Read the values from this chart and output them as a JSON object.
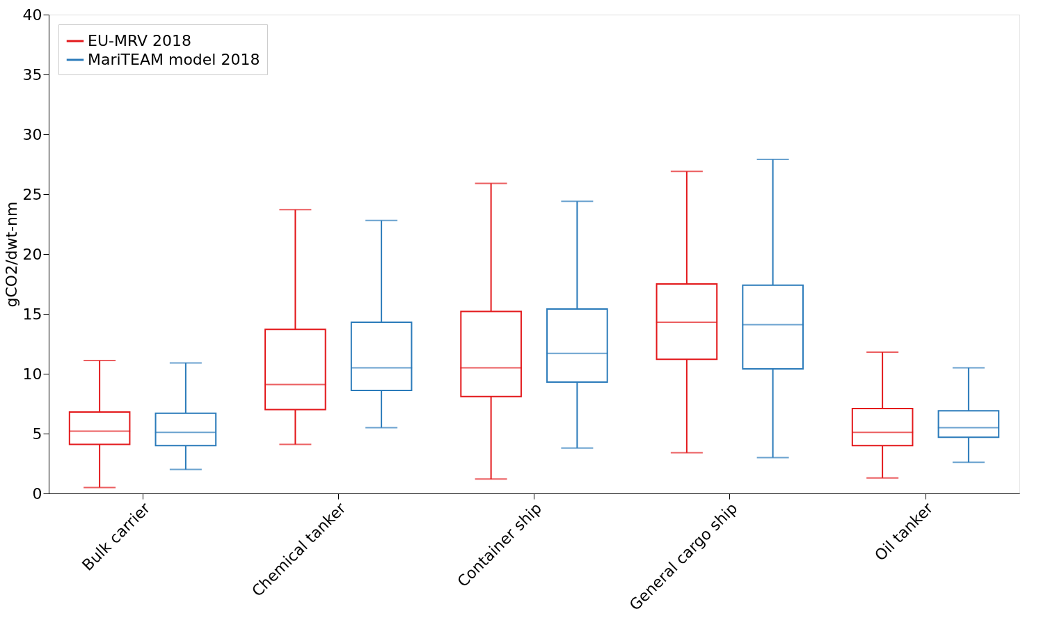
{
  "chart_data": {
    "type": "box",
    "ylabel": "gCO2/dwt-nm",
    "categories": [
      "Bulk carrier",
      "Chemical tanker",
      "Container ship",
      "General cargo ship",
      "Oil tanker"
    ],
    "ylim": [
      0,
      40
    ],
    "yticks": [
      0,
      5,
      10,
      15,
      20,
      25,
      30,
      35,
      40
    ],
    "grid": false,
    "legend": "top left",
    "series": [
      {
        "name": "EU-MRV 2018",
        "color": "#e3191c",
        "boxes": [
          {
            "low": 0.5,
            "q1": 4.1,
            "median": 5.2,
            "q3": 6.8,
            "high": 11.1
          },
          {
            "low": 4.1,
            "q1": 7.0,
            "median": 9.1,
            "q3": 13.7,
            "high": 23.7
          },
          {
            "low": 1.2,
            "q1": 8.1,
            "median": 10.5,
            "q3": 15.2,
            "high": 25.9
          },
          {
            "low": 3.4,
            "q1": 11.2,
            "median": 14.3,
            "q3": 17.5,
            "high": 26.9
          },
          {
            "low": 1.3,
            "q1": 4.0,
            "median": 5.1,
            "q3": 7.1,
            "high": 11.8
          }
        ]
      },
      {
        "name": "MariTEAM model 2018",
        "color": "#2b7bba",
        "boxes": [
          {
            "low": 2.0,
            "q1": 4.0,
            "median": 5.1,
            "q3": 6.7,
            "high": 10.9
          },
          {
            "low": 5.5,
            "q1": 8.6,
            "median": 10.5,
            "q3": 14.3,
            "high": 22.8
          },
          {
            "low": 3.8,
            "q1": 9.3,
            "median": 11.7,
            "q3": 15.4,
            "high": 24.4
          },
          {
            "low": 3.0,
            "q1": 10.4,
            "median": 14.1,
            "q3": 17.4,
            "high": 27.9
          },
          {
            "low": 2.6,
            "q1": 4.7,
            "median": 5.5,
            "q3": 6.9,
            "high": 10.5
          }
        ]
      }
    ]
  }
}
